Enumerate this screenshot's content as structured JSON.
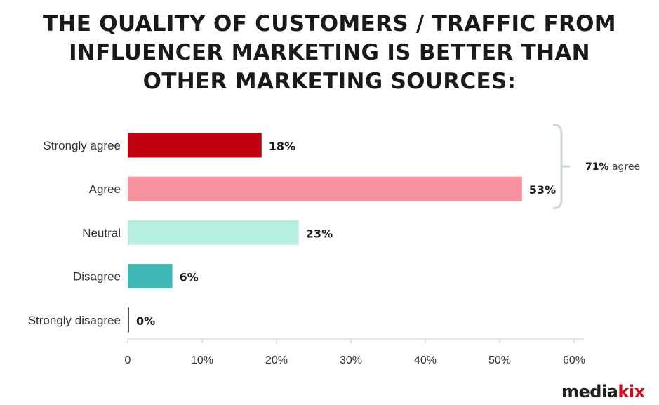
{
  "chart_data": {
    "type": "bar",
    "orientation": "horizontal",
    "title_lines": [
      "THE QUALITY OF CUSTOMERS / TRAFFIC FROM",
      "INFLUENCER MARKETING IS BETTER THAN",
      "OTHER MARKETING SOURCES:"
    ],
    "categories": [
      "Strongly agree",
      "Agree",
      "Neutral",
      "Disagree",
      "Strongly disagree"
    ],
    "values": [
      18,
      53,
      23,
      6,
      0
    ],
    "data_labels": [
      "18%",
      "53%",
      "23%",
      "6%",
      "0%"
    ],
    "colors": [
      "#c00010",
      "#f7929f",
      "#b6eee1",
      "#3fb8b6",
      "#555555"
    ],
    "xlim": [
      0,
      60
    ],
    "xticks": [
      0,
      10,
      20,
      30,
      40,
      50,
      60
    ],
    "xtick_labels": [
      "0",
      "10%",
      "20%",
      "30%",
      "40%",
      "50%",
      "60%"
    ],
    "grid": false,
    "annotation": {
      "value": "71%",
      "text": "agree",
      "brackets": [
        "Strongly agree",
        "Agree"
      ],
      "color": "#c8d8d8"
    }
  },
  "logo": {
    "part1": "media",
    "part2": "kix",
    "color1": "#222222",
    "color2": "#d0101e"
  }
}
